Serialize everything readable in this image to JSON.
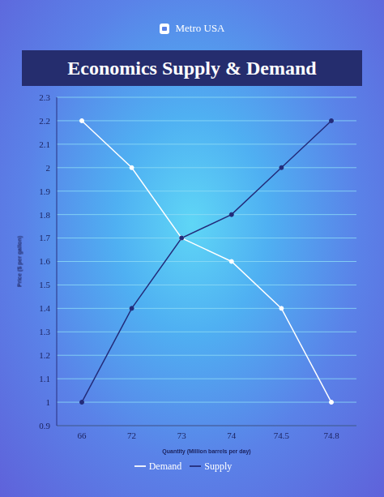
{
  "header": "Metro USA",
  "chart_data": {
    "type": "line",
    "title": "Economics Supply & Demand",
    "x_label": "Quantity (Million barrels per day)",
    "y_label": "Price ($ per gallon)",
    "categories": [
      "66",
      "72",
      "73",
      "74",
      "74.5",
      "74.8"
    ],
    "series": [
      {
        "name": "Demand",
        "color": "#ffffff",
        "marker": "circle",
        "values": [
          2.2,
          2.0,
          1.7,
          1.6,
          1.4,
          1.0
        ]
      },
      {
        "name": "Supply",
        "color": "#232c7a",
        "marker": "circle",
        "values": [
          1.0,
          1.4,
          1.7,
          1.8,
          2.0,
          2.2
        ]
      }
    ],
    "ylim": [
      0.9,
      2.3
    ],
    "yticks": [
      0.9,
      1,
      1.1,
      1.2,
      1.3,
      1.4,
      1.5,
      1.6,
      1.7,
      1.8,
      1.9,
      2,
      2.1,
      2.2,
      2.3
    ],
    "grid": true,
    "legend": "bottom"
  }
}
